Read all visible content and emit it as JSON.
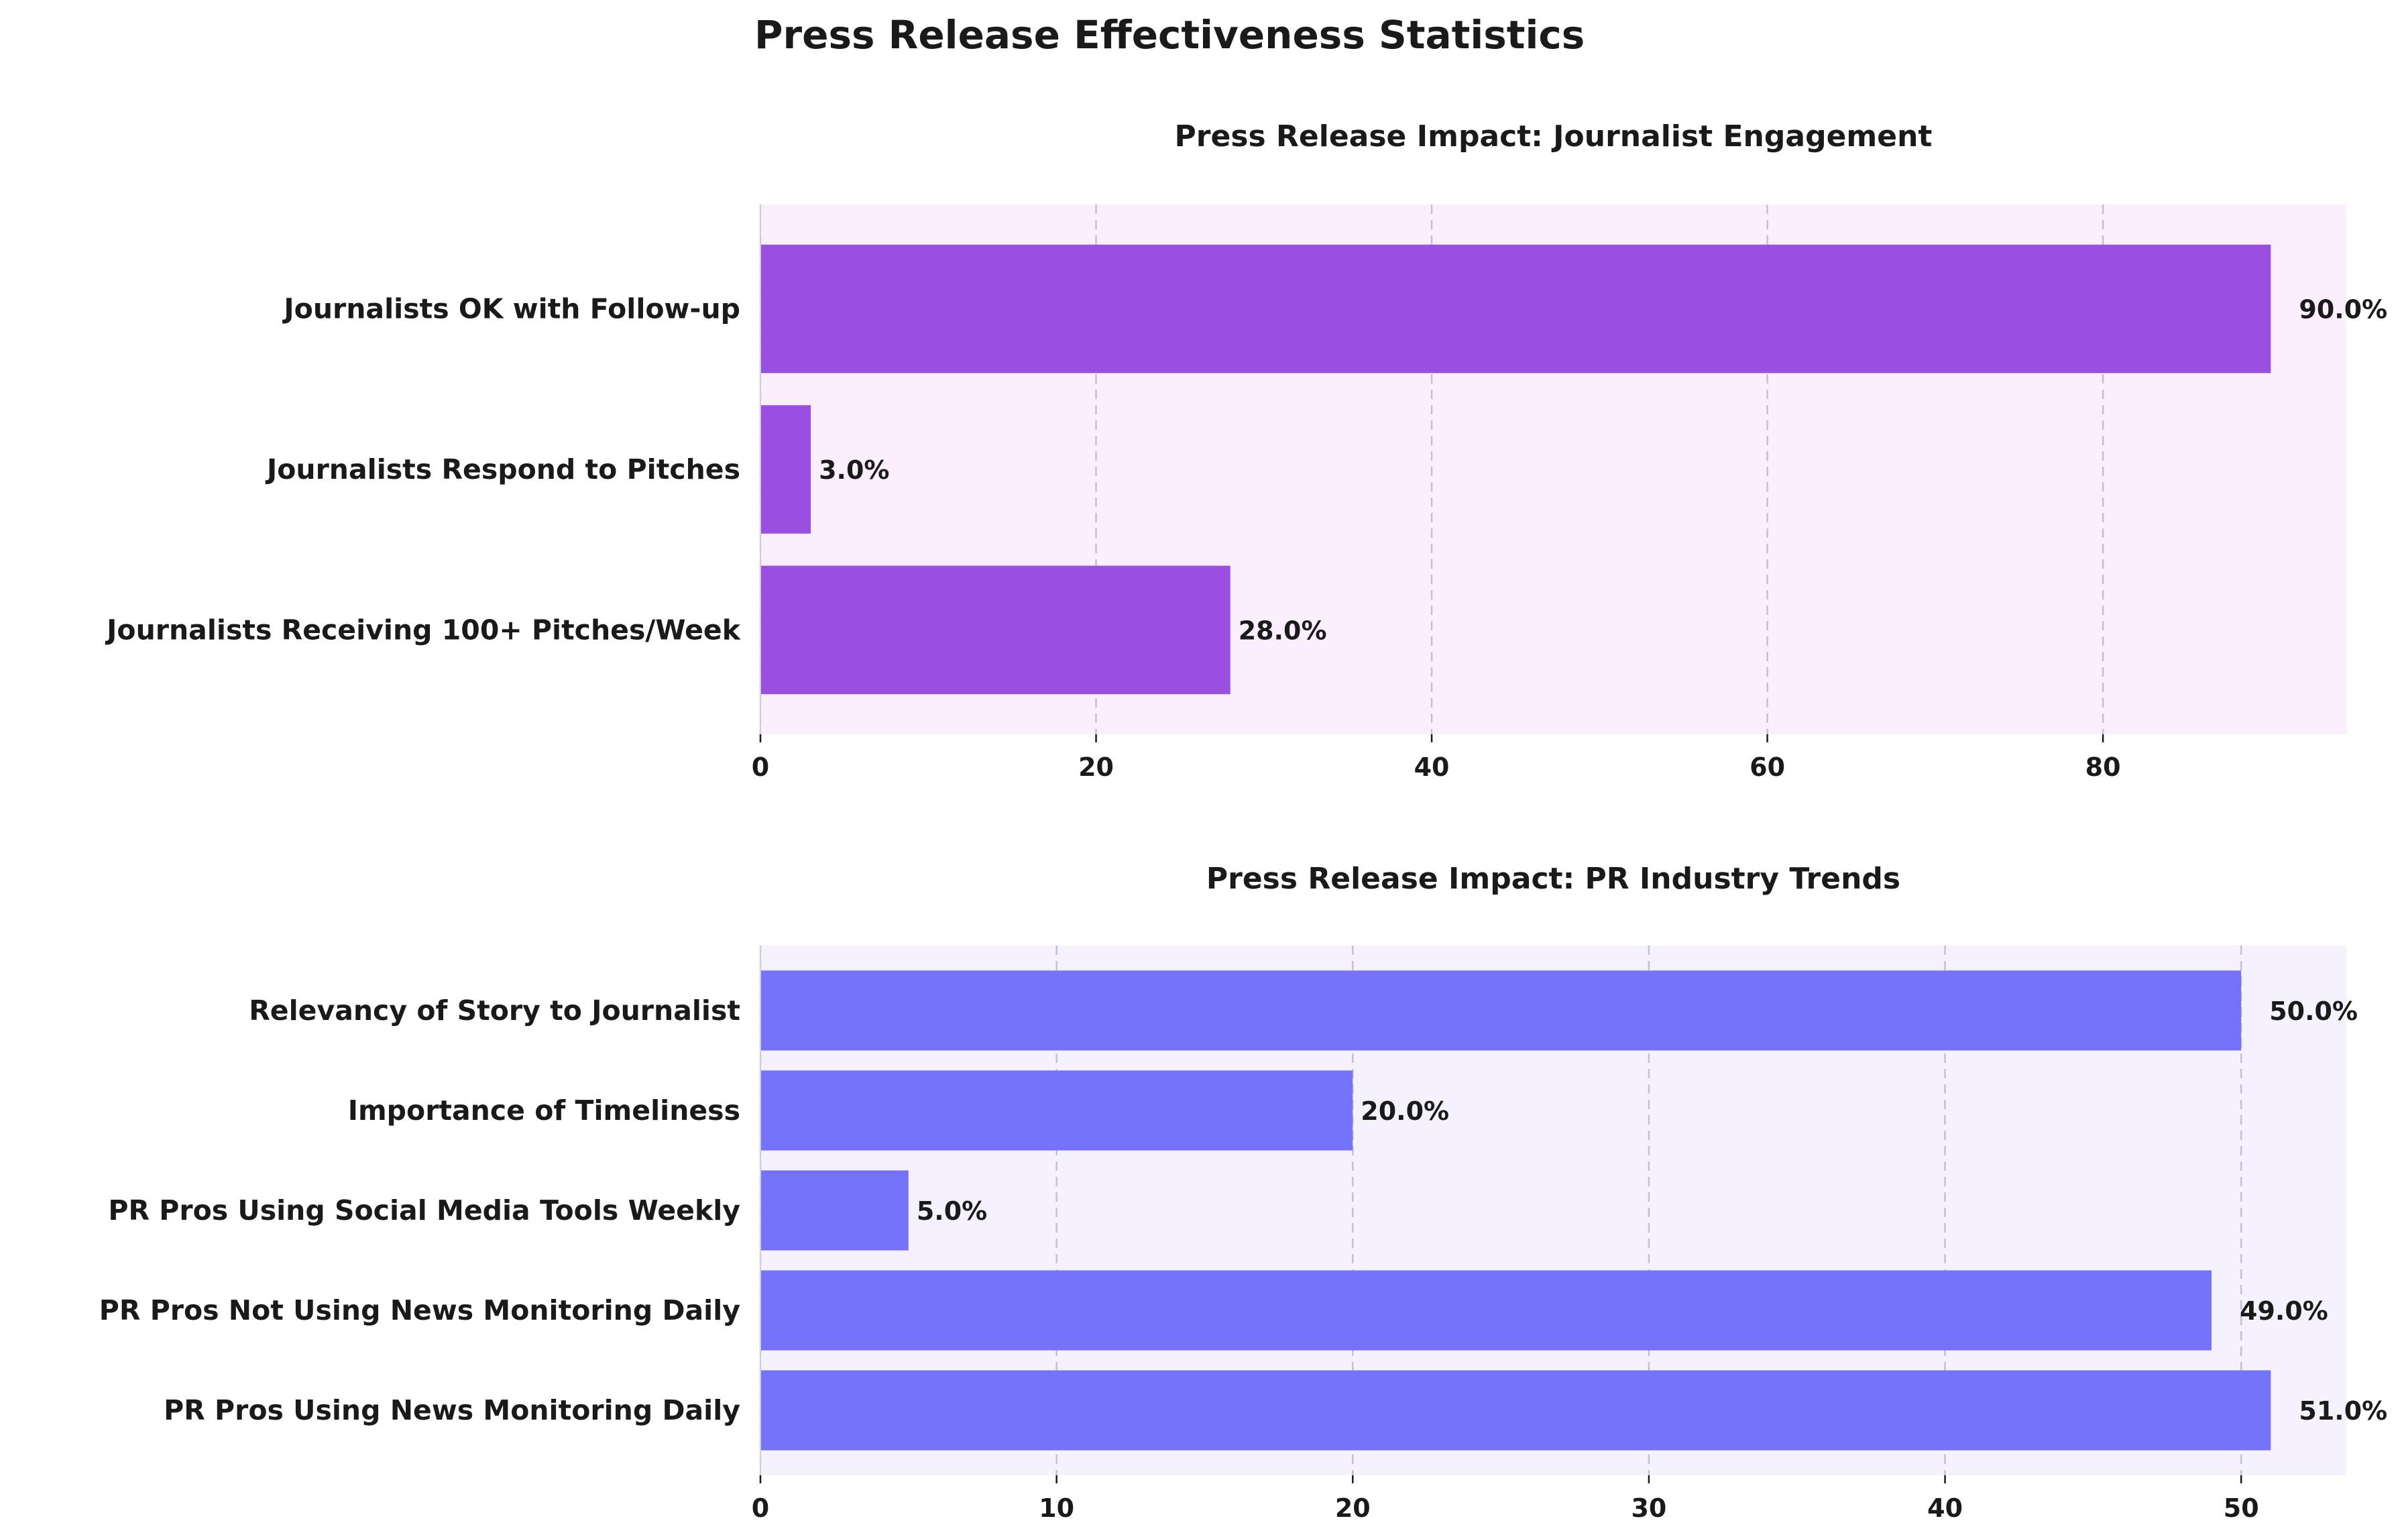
{
  "figure_title": "Press Release Effectiveness Statistics",
  "chart_data": [
    {
      "type": "bar",
      "orientation": "horizontal",
      "title": "Press Release Impact: Journalist Engagement",
      "xlabel": "",
      "ylabel": "",
      "categories": [
        "Journalists Receiving 100+ Pitches/Week",
        "Journalists Respond to Pitches",
        "Journalists OK with Follow-up"
      ],
      "values": [
        28.0,
        3.0,
        90.0
      ],
      "value_labels": [
        "28.0%",
        "3.0%",
        "90.0%"
      ],
      "xlim": [
        0,
        94.5
      ],
      "xticks": [
        0,
        20,
        40,
        60,
        80
      ],
      "grid": "x, dashed",
      "colors": {
        "bar": "#9b4fe0",
        "background": "#fbeffd"
      }
    },
    {
      "type": "bar",
      "orientation": "horizontal",
      "title": "Press Release Impact: PR Industry Trends",
      "xlabel": "",
      "ylabel": "",
      "categories": [
        "PR Pros Using News Monitoring Daily",
        "PR Pros Not Using News Monitoring Daily",
        "PR Pros Using Social Media Tools Weekly",
        "Importance of Timeliness",
        "Relevancy of Story to Journalist"
      ],
      "values": [
        51.0,
        49.0,
        5.0,
        20.0,
        50.0
      ],
      "value_labels": [
        "51.0%",
        "49.0%",
        "5.0%",
        "20.0%",
        "50.0%"
      ],
      "xlim": [
        0,
        53.55
      ],
      "xticks": [
        0,
        10,
        20,
        30,
        40,
        50
      ],
      "grid": "x, dashed",
      "colors": {
        "bar": "#7472f8",
        "background": "#f5f2fd"
      }
    }
  ]
}
